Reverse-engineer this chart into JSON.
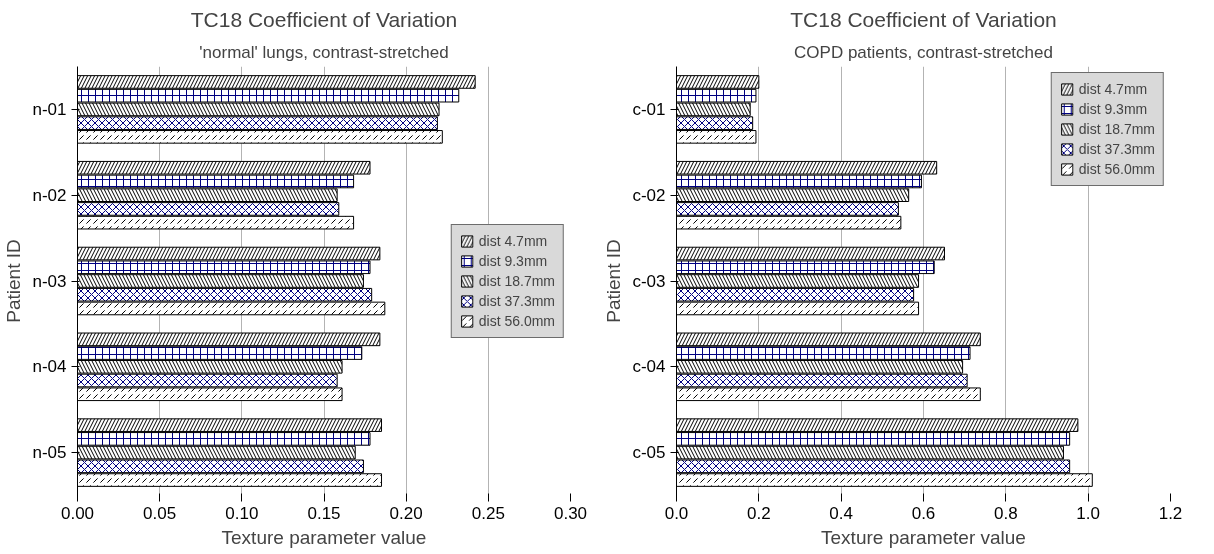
{
  "chart_data": [
    {
      "type": "bar",
      "orientation": "horizontal",
      "title": "TC18 Coefficient of Variation",
      "subtitle": "'normal' lungs, contrast-stretched",
      "xlabel": "Texture parameter value",
      "ylabel": "Patient ID",
      "categories": [
        "n-01",
        "n-02",
        "n-03",
        "n-04",
        "n-05"
      ],
      "xlim": [
        0,
        0.3
      ],
      "xticks": [
        {
          "value": 0,
          "label": "0.00"
        },
        {
          "value": 0.05,
          "label": "0.05"
        },
        {
          "value": 0.1,
          "label": "0.10"
        },
        {
          "value": 0.15,
          "label": "0.15"
        },
        {
          "value": 0.2,
          "label": "0.20"
        },
        {
          "value": 0.25,
          "label": "0.25"
        },
        {
          "value": 0.3,
          "label": "0.30"
        }
      ],
      "grid": "x",
      "legend": "right",
      "series": [
        {
          "name": "dist 4.7mm",
          "color": "#ffffff",
          "values": [
            0.242,
            0.178,
            0.184,
            0.184,
            0.185
          ]
        },
        {
          "name": "dist 9.3mm",
          "color": "#ffffff",
          "values": [
            0.232,
            0.168,
            0.178,
            0.173,
            0.178
          ]
        },
        {
          "name": "dist 18.7mm",
          "color": "#ffffff",
          "values": [
            0.22,
            0.158,
            0.174,
            0.161,
            0.169
          ]
        },
        {
          "name": "dist 37.3mm",
          "color": "#ffffff",
          "values": [
            0.219,
            0.159,
            0.179,
            0.158,
            0.174
          ]
        },
        {
          "name": "dist 56.0mm",
          "color": "#ffffff",
          "values": [
            0.222,
            0.168,
            0.187,
            0.161,
            0.185
          ]
        }
      ]
    },
    {
      "type": "bar",
      "orientation": "horizontal",
      "title": "TC18 Coefficient of Variation",
      "subtitle": "COPD patients, contrast-stretched",
      "xlabel": "Texture parameter value",
      "ylabel": "Patient ID",
      "categories": [
        "c-01",
        "c-02",
        "c-03",
        "c-04",
        "c-05"
      ],
      "xlim": [
        0,
        1.2
      ],
      "xticks": [
        {
          "value": 0,
          "label": "0.0"
        },
        {
          "value": 0.2,
          "label": "0.2"
        },
        {
          "value": 0.4,
          "label": "0.4"
        },
        {
          "value": 0.6,
          "label": "0.6"
        },
        {
          "value": 0.8,
          "label": "0.8"
        },
        {
          "value": 1.0,
          "label": "1.0"
        },
        {
          "value": 1.2,
          "label": "1.2"
        }
      ],
      "grid": "x",
      "legend": "top right",
      "series": [
        {
          "name": "dist 4.7mm",
          "color": "#ffffff",
          "values": [
            0.2,
            0.632,
            0.651,
            0.738,
            0.975
          ]
        },
        {
          "name": "dist 9.3mm",
          "color": "#ffffff",
          "values": [
            0.193,
            0.595,
            0.626,
            0.713,
            0.955
          ]
        },
        {
          "name": "dist 18.7mm",
          "color": "#ffffff",
          "values": [
            0.179,
            0.564,
            0.588,
            0.695,
            0.94
          ]
        },
        {
          "name": "dist 37.3mm",
          "color": "#ffffff",
          "values": [
            0.185,
            0.539,
            0.576,
            0.706,
            0.955
          ]
        },
        {
          "name": "dist 56.0mm",
          "color": "#ffffff",
          "values": [
            0.193,
            0.545,
            0.588,
            0.738,
            1.01
          ]
        }
      ]
    }
  ]
}
